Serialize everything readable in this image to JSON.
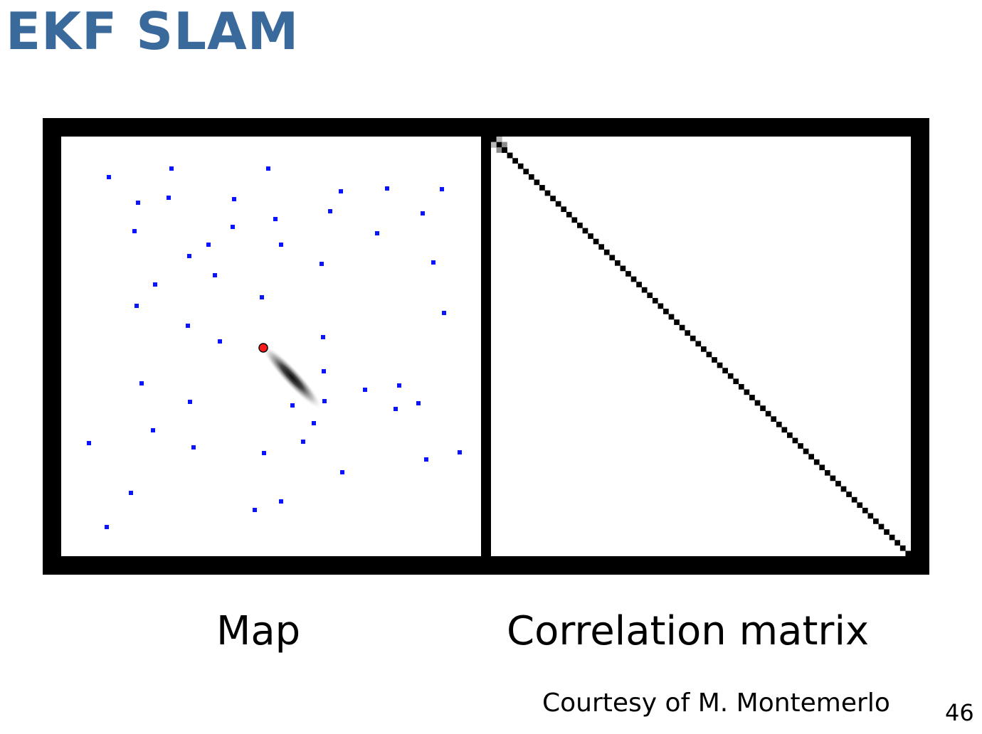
{
  "slide": {
    "title": "EKF SLAM",
    "map_caption": "Map",
    "matrix_caption": "Correlation matrix",
    "courtesy": "Courtesy of M. Montemerlo",
    "page_number": "46"
  },
  "colors": {
    "title": "#3a6a9b",
    "landmark": "#0b14ff",
    "robot": "#ff1a1a",
    "frame": "#000000",
    "matrix_diagonal": "#000000"
  },
  "chart_data": [
    {
      "type": "scatter",
      "name_key": "map",
      "x_range": [
        0,
        590
      ],
      "y_range": [
        0,
        590
      ],
      "landmarks": [
        [
          67,
          57
        ],
        [
          155,
          45
        ],
        [
          291,
          45
        ],
        [
          108,
          93
        ],
        [
          151,
          86
        ],
        [
          243,
          88
        ],
        [
          393,
          77
        ],
        [
          458,
          73
        ],
        [
          535,
          74
        ],
        [
          301,
          116
        ],
        [
          378,
          105
        ],
        [
          508,
          108
        ],
        [
          103,
          133
        ],
        [
          241,
          127
        ],
        [
          444,
          136
        ],
        [
          207,
          152
        ],
        [
          309,
          152
        ],
        [
          180,
          168
        ],
        [
          366,
          179
        ],
        [
          523,
          177
        ],
        [
          216,
          195
        ],
        [
          132,
          208
        ],
        [
          282,
          226
        ],
        [
          106,
          238
        ],
        [
          538,
          248
        ],
        [
          178,
          266
        ],
        [
          223,
          288
        ],
        [
          368,
          282
        ],
        [
          369,
          330
        ],
        [
          113,
          347
        ],
        [
          475,
          350
        ],
        [
          427,
          356
        ],
        [
          181,
          373
        ],
        [
          325,
          378
        ],
        [
          370,
          372
        ],
        [
          470,
          383
        ],
        [
          502,
          375
        ],
        [
          129,
          413
        ],
        [
          355,
          403
        ],
        [
          39,
          431
        ],
        [
          186,
          437
        ],
        [
          340,
          429
        ],
        [
          285,
          445
        ],
        [
          560,
          444
        ],
        [
          513,
          454
        ],
        [
          395,
          472
        ],
        [
          98,
          501
        ],
        [
          309,
          513
        ],
        [
          272,
          525
        ],
        [
          64,
          549
        ]
      ],
      "robot": [
        284,
        297
      ],
      "uncertainty": {
        "cx": 324,
        "cy": 338,
        "rx": 62,
        "ry": 12,
        "rotation_deg": 47
      }
    },
    {
      "type": "heatmap",
      "name_key": "correlation-matrix",
      "size": 78,
      "pattern": "diagonal"
    }
  ]
}
